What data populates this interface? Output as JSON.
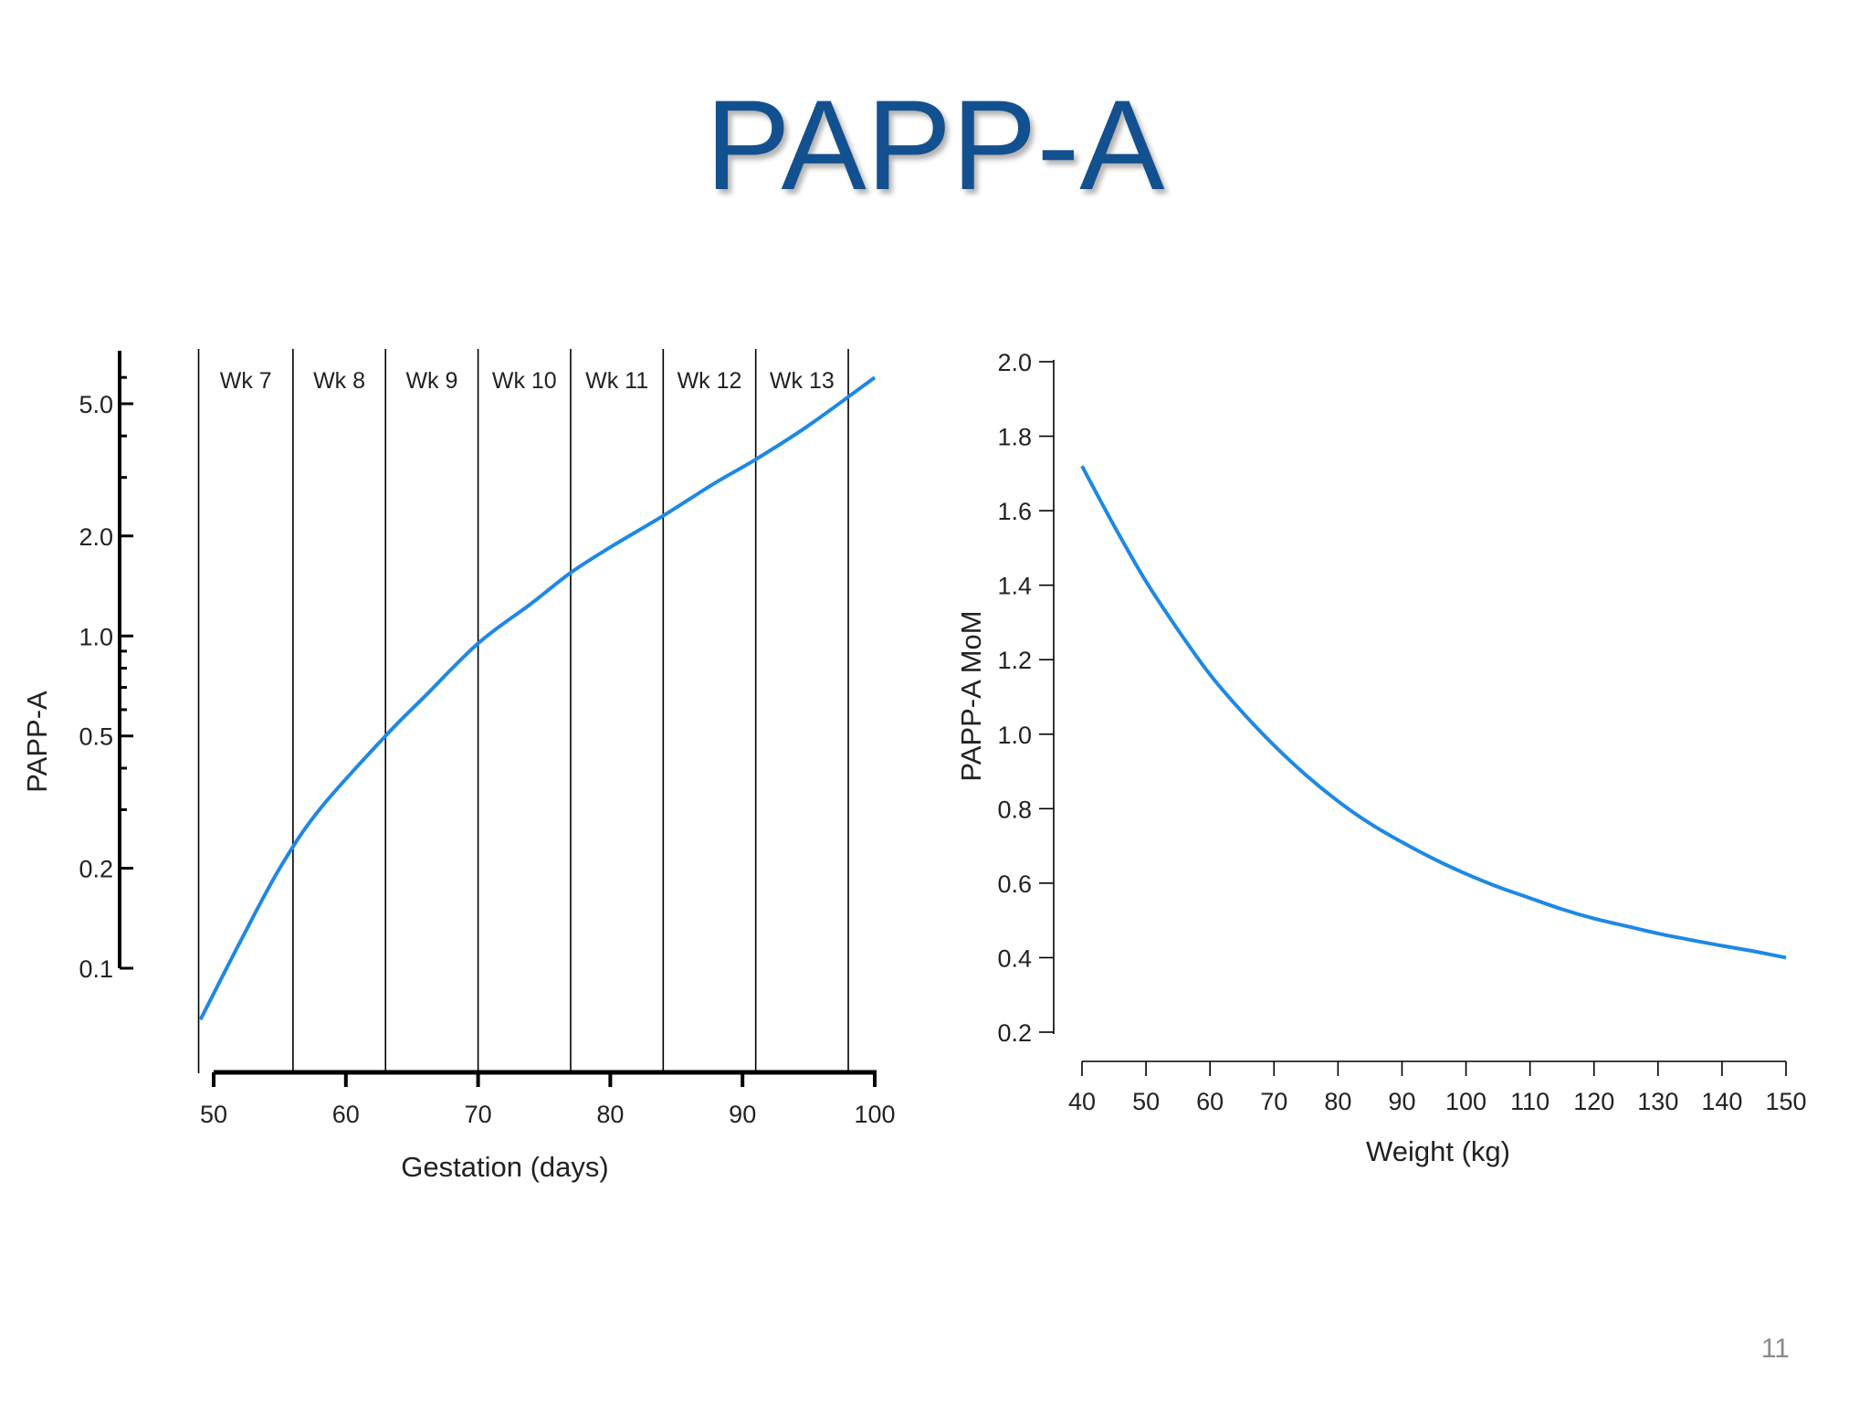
{
  "slide": {
    "title": "PAPP-A",
    "page_number": "11",
    "accent_color": "#13508f",
    "curve_color": "#1e88e5"
  },
  "chart_data": [
    {
      "type": "line",
      "title": "",
      "xlabel": "Gestation (days)",
      "ylabel": "PAPP-A",
      "yscale": "log",
      "xlim": [
        49,
        100
      ],
      "ylim": [
        0.05,
        7
      ],
      "x_ticks": [
        50,
        60,
        70,
        80,
        90,
        100
      ],
      "y_ticks": [
        0.1,
        0.2,
        0.5,
        1.0,
        2.0,
        5.0
      ],
      "y_tick_labels": [
        "0.1",
        "0.2",
        "0.5",
        "1.0",
        "2.0",
        "5.0"
      ],
      "week_boundaries": [
        49,
        56,
        63,
        70,
        77,
        84,
        91,
        98
      ],
      "week_labels": [
        "Wk 7",
        "Wk 8",
        "Wk 9",
        "Wk 10",
        "Wk 11",
        "Wk 12",
        "Wk 13"
      ],
      "grid": false,
      "series": [
        {
          "x": [
            49,
            52,
            55,
            58,
            63,
            66,
            70,
            74,
            77,
            80,
            84,
            88,
            91,
            95,
            100
          ],
          "values": [
            0.07,
            0.12,
            0.2,
            0.3,
            0.5,
            0.66,
            0.95,
            1.25,
            1.55,
            1.85,
            2.3,
            2.9,
            3.4,
            4.3,
            6.0
          ]
        }
      ]
    },
    {
      "type": "line",
      "title": "",
      "xlabel": "Weight (kg)",
      "ylabel": "PAPP-A MoM",
      "xlim": [
        40,
        150
      ],
      "ylim": [
        0.2,
        2.0
      ],
      "x_ticks": [
        40,
        50,
        60,
        70,
        80,
        90,
        100,
        110,
        120,
        130,
        140,
        150
      ],
      "y_ticks": [
        0.2,
        0.4,
        0.6,
        0.8,
        1.0,
        1.2,
        1.4,
        1.6,
        1.8,
        2.0
      ],
      "y_tick_labels": [
        "0.2",
        "0.4",
        "0.6",
        "0.8",
        "1.0",
        "1.2",
        "1.4",
        "1.6",
        "1.8",
        "2.0"
      ],
      "grid": false,
      "series": [
        {
          "x": [
            40,
            45,
            50,
            55,
            60,
            65,
            70,
            75,
            80,
            85,
            90,
            95,
            100,
            105,
            110,
            115,
            120,
            125,
            130,
            135,
            140,
            145,
            150
          ],
          "values": [
            1.72,
            1.56,
            1.41,
            1.28,
            1.16,
            1.06,
            0.97,
            0.89,
            0.82,
            0.76,
            0.71,
            0.665,
            0.625,
            0.59,
            0.56,
            0.53,
            0.505,
            0.485,
            0.465,
            0.448,
            0.432,
            0.417,
            0.4
          ]
        }
      ]
    }
  ]
}
